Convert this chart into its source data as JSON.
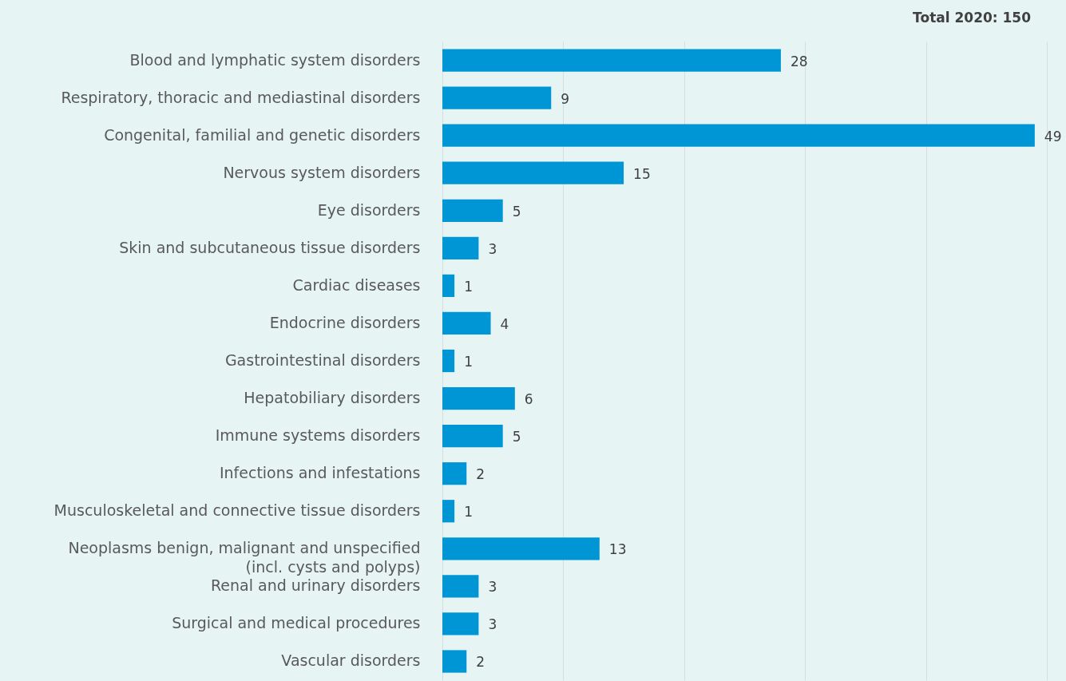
{
  "chart_data": {
    "type": "bar",
    "orientation": "horizontal",
    "title": "Total 2020: 150",
    "categories": [
      "Blood and lymphatic system disorders",
      "Respiratory, thoracic and mediastinal disorders",
      "Congenital, familial and genetic disorders",
      "Nervous system disorders",
      "Eye disorders",
      "Skin and subcutaneous tissue disorders",
      "Cardiac diseases",
      "Endocrine disorders",
      "Gastrointestinal disorders",
      "Hepatobiliary disorders",
      "Immune systems disorders",
      "Infections and infestations",
      "Musculoskeletal and connective tissue disorders",
      "Neoplasms benign, malignant and unspecified\n(incl. cysts and polyps)",
      "Renal and urinary disorders",
      "Surgical and medical procedures",
      "Vascular disorders"
    ],
    "values": [
      28,
      9,
      49,
      15,
      5,
      3,
      1,
      4,
      1,
      6,
      5,
      2,
      1,
      13,
      3,
      3,
      2
    ],
    "color": "#0096d6",
    "xlim": [
      0,
      50
    ],
    "xticks": [
      {
        "value": 0,
        "label": null
      },
      {
        "value": 10,
        "label": null
      },
      {
        "value": 20,
        "label": null
      },
      {
        "value": 30,
        "label": null
      },
      {
        "value": 40,
        "label": null
      },
      {
        "value": 50,
        "label": null
      }
    ],
    "grid": "x",
    "tick_labels": "y",
    "data_labels": true
  }
}
